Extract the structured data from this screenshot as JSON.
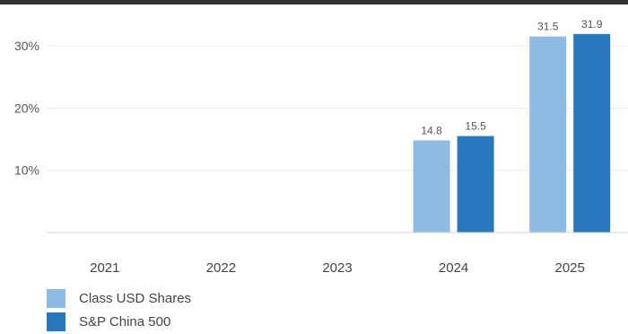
{
  "chart_data": {
    "type": "bar",
    "categories": [
      "2021",
      "2022",
      "2023",
      "2024",
      "2025"
    ],
    "series": [
      {
        "name": "Class USD Shares",
        "color": "#8dbbe1",
        "values": [
          null,
          null,
          null,
          14.8,
          31.5
        ],
        "labels": [
          "",
          "",
          "",
          "14.8",
          "31.5"
        ]
      },
      {
        "name": "S&P China 500",
        "color": "#2778bd",
        "values": [
          null,
          null,
          null,
          15.5,
          31.9
        ],
        "labels": [
          "",
          "",
          "",
          "15.5",
          "31.9"
        ]
      }
    ],
    "ylim": [
      0,
      35
    ],
    "yticks": [
      10,
      20,
      30
    ],
    "ytick_labels": [
      "10%",
      "20%",
      "30%"
    ],
    "grid": true,
    "legend_position": "bottom-left"
  }
}
